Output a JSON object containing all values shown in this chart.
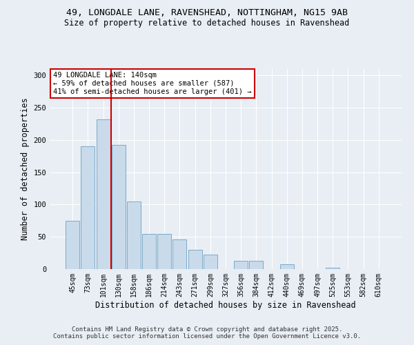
{
  "title_line1": "49, LONGDALE LANE, RAVENSHEAD, NOTTINGHAM, NG15 9AB",
  "title_line2": "Size of property relative to detached houses in Ravenshead",
  "xlabel": "Distribution of detached houses by size in Ravenshead",
  "ylabel": "Number of detached properties",
  "bar_labels": [
    "45sqm",
    "73sqm",
    "101sqm",
    "130sqm",
    "158sqm",
    "186sqm",
    "214sqm",
    "243sqm",
    "271sqm",
    "299sqm",
    "327sqm",
    "356sqm",
    "384sqm",
    "412sqm",
    "440sqm",
    "469sqm",
    "497sqm",
    "525sqm",
    "553sqm",
    "582sqm",
    "610sqm"
  ],
  "values": [
    75,
    190,
    232,
    192,
    105,
    55,
    55,
    46,
    30,
    22,
    0,
    13,
    13,
    0,
    7,
    0,
    0,
    2,
    0,
    0,
    0
  ],
  "bar_color": "#c9daea",
  "bar_edge_color": "#7aaac8",
  "vline_x_pos": 2.5,
  "vline_color": "#cc0000",
  "annotation_text": "49 LONGDALE LANE: 140sqm\n← 59% of detached houses are smaller (587)\n41% of semi-detached houses are larger (401) →",
  "annotation_box_color": "#ffffff",
  "annotation_box_edge_color": "#cc0000",
  "ylim": [
    0,
    310
  ],
  "yticks": [
    0,
    50,
    100,
    150,
    200,
    250,
    300
  ],
  "bg_color": "#e8eef4",
  "plot_bg_color": "#e8eef4",
  "grid_color": "#ffffff",
  "footer_line1": "Contains HM Land Registry data © Crown copyright and database right 2025.",
  "footer_line2": "Contains public sector information licensed under the Open Government Licence v3.0.",
  "title_fontsize": 9.5,
  "subtitle_fontsize": 8.5,
  "axis_label_fontsize": 8.5,
  "tick_fontsize": 7,
  "annotation_fontsize": 7.5,
  "footer_fontsize": 6.5
}
